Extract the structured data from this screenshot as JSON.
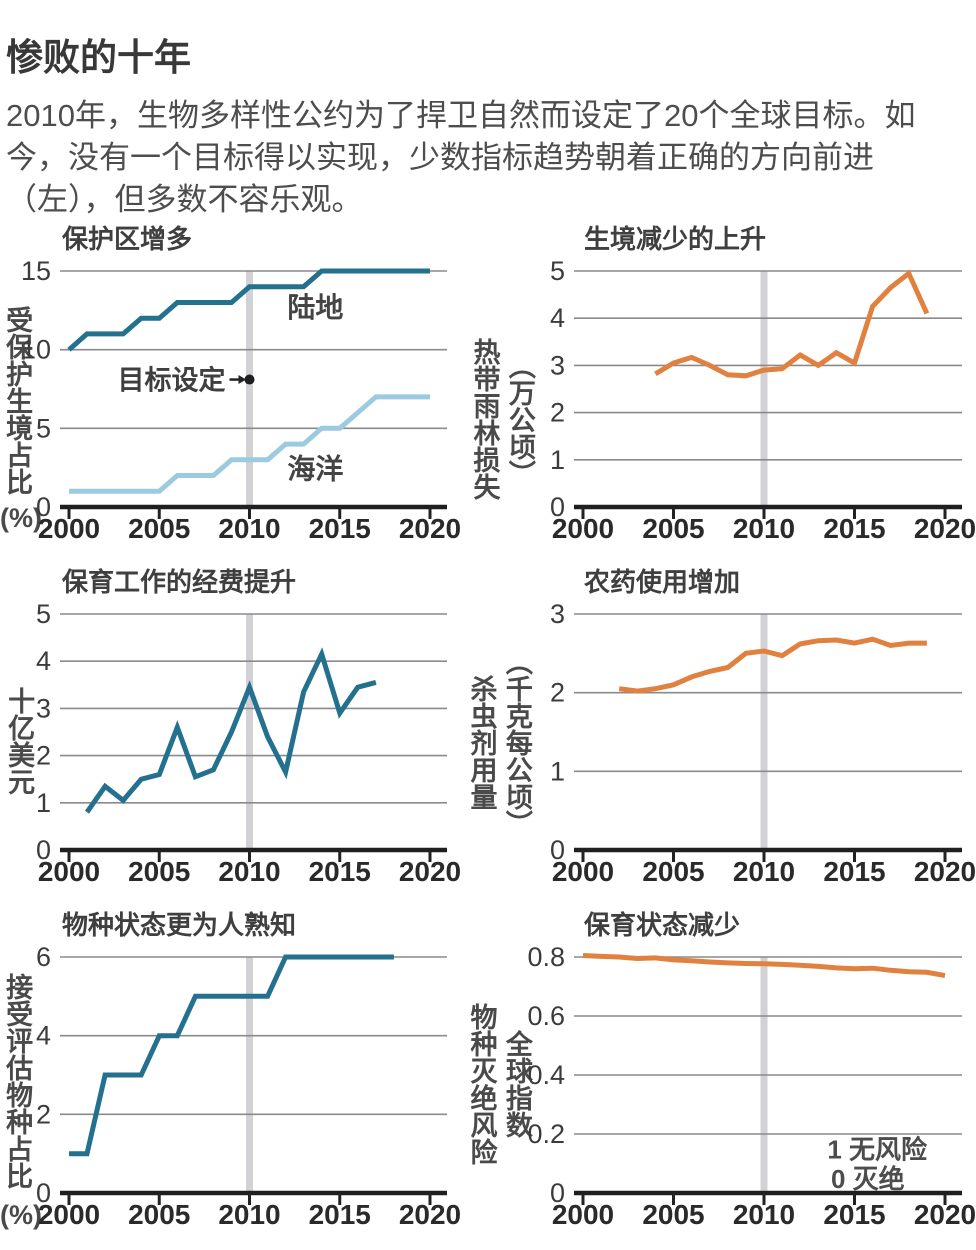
{
  "page": {
    "title": "惨败的十年",
    "intro": "2010年，生物多样性公约为了捍卫自然而设定了20个全球目标。如今，没有一个目标得以实现，少数指标趋势朝着正确的方向前进（左），但多数不容乐观。"
  },
  "colors": {
    "teal": "#24708F",
    "light_blue": "#9CCBE0",
    "orange": "#E0813F",
    "band": "#D2D2D6",
    "grid": "#8A8A8A",
    "axis": "#1F1F1F",
    "tick_label": "#3C3C3C",
    "year_label": "#2A2A2A",
    "annotation": "#4D4D4D"
  },
  "chart_data": [
    {
      "id": "protected-areas",
      "type": "line",
      "title": "保护区增多",
      "ylabel_lines": [
        "受保护生境占比"
      ],
      "ylabel_unit": "(%)",
      "ymax": 15,
      "yticks": [
        "0",
        "5",
        "10",
        "15"
      ],
      "xticks": [
        2000,
        2005,
        2010,
        2015,
        2020
      ],
      "xlim": [
        2000,
        2020
      ],
      "band_year": 2010,
      "grid": true,
      "series": [
        {
          "key": "land",
          "name": "陆地",
          "color_key": "teal",
          "label_pos": {
            "year": 2012.1,
            "value": 12.7
          },
          "x": [
            2000,
            2001,
            2002,
            2003,
            2004,
            2005,
            2006,
            2007,
            2008,
            2009,
            2010,
            2011,
            2012,
            2013,
            2014,
            2015,
            2016,
            2017,
            2018,
            2019,
            2020
          ],
          "y": [
            10,
            11,
            11,
            11,
            12,
            12,
            13,
            13,
            13,
            13,
            14,
            14,
            14,
            14,
            15,
            15,
            15,
            15,
            15,
            15,
            15
          ]
        },
        {
          "key": "ocean",
          "name": "海洋",
          "color_key": "light_blue",
          "label_pos": {
            "year": 2012.1,
            "value": 2.45
          },
          "x": [
            2000,
            2001,
            2002,
            2003,
            2004,
            2005,
            2006,
            2007,
            2008,
            2009,
            2010,
            2011,
            2012,
            2013,
            2014,
            2015,
            2016,
            2017,
            2018,
            2019,
            2020
          ],
          "y": [
            1,
            1,
            1,
            1,
            1,
            1,
            2,
            2,
            2,
            3,
            3,
            3,
            4,
            4,
            5,
            5,
            6,
            7,
            7,
            7,
            7
          ]
        }
      ],
      "annotations": [
        {
          "type": "target-dot",
          "text": "目标设定",
          "year": 2010,
          "value": 8.1
        }
      ]
    },
    {
      "id": "habitat-loss",
      "type": "line",
      "title": "生境减少的上升",
      "ylabel_lines": [
        "热带雨林损失",
        "（万公顷）"
      ],
      "ylabel_unit": "",
      "ymax": 5,
      "yticks": [
        "0",
        "1",
        "2",
        "3",
        "4",
        "5"
      ],
      "xticks": [
        2000,
        2005,
        2010,
        2015,
        2020
      ],
      "xlim": [
        2000,
        2020
      ],
      "band_year": 2010,
      "grid": true,
      "series": [
        {
          "key": "forest-loss",
          "name": "热带雨林损失",
          "color_key": "orange",
          "x": [
            2004,
            2005,
            2006,
            2007,
            2008,
            2009,
            2010,
            2011,
            2012,
            2013,
            2014,
            2015,
            2016,
            2017,
            2018,
            2019
          ],
          "y": [
            2.82,
            3.05,
            3.17,
            3.0,
            2.8,
            2.78,
            2.9,
            2.93,
            3.22,
            3.0,
            3.27,
            3.05,
            4.25,
            4.65,
            4.95,
            4.1
          ]
        }
      ],
      "annotations": []
    },
    {
      "id": "conservation-funding",
      "type": "line",
      "title": "保育工作的经费提升",
      "ylabel_lines": [
        "十亿美元"
      ],
      "ylabel_unit": "",
      "ymax": 5,
      "yticks": [
        "0",
        "1",
        "2",
        "3",
        "4",
        "5"
      ],
      "xticks": [
        2000,
        2005,
        2010,
        2015,
        2020
      ],
      "xlim": [
        2000,
        2020
      ],
      "band_year": 2010,
      "grid": true,
      "series": [
        {
          "key": "funding",
          "name": "十亿美元",
          "color_key": "teal",
          "x": [
            2001,
            2002,
            2003,
            2004,
            2005,
            2006,
            2007,
            2008,
            2009,
            2010,
            2011,
            2012,
            2013,
            2014,
            2015,
            2016,
            2017
          ],
          "y": [
            0.8,
            1.35,
            1.05,
            1.5,
            1.6,
            2.6,
            1.55,
            1.7,
            2.5,
            3.45,
            2.4,
            1.65,
            3.35,
            4.15,
            2.9,
            3.45,
            3.55
          ]
        }
      ],
      "annotations": []
    },
    {
      "id": "pesticide-use",
      "type": "line",
      "title": "农药使用增加",
      "ylabel_lines": [
        "杀虫剂用量",
        "（千克每公顷）"
      ],
      "ylabel_unit": "",
      "ymax": 3,
      "yticks": [
        "0",
        "1",
        "2",
        "3"
      ],
      "xticks": [
        2000,
        2005,
        2010,
        2015,
        2020
      ],
      "xlim": [
        2000,
        2020
      ],
      "band_year": 2010,
      "grid": true,
      "series": [
        {
          "key": "pesticide",
          "name": "杀虫剂用量",
          "color_key": "orange",
          "x": [
            2002,
            2003,
            2004,
            2005,
            2006,
            2007,
            2008,
            2009,
            2010,
            2011,
            2012,
            2013,
            2014,
            2015,
            2016,
            2017,
            2018,
            2019
          ],
          "y": [
            2.05,
            2.02,
            2.05,
            2.1,
            2.2,
            2.27,
            2.32,
            2.5,
            2.53,
            2.47,
            2.62,
            2.66,
            2.67,
            2.63,
            2.68,
            2.6,
            2.63,
            2.63
          ]
        }
      ],
      "annotations": []
    },
    {
      "id": "species-assessed",
      "type": "line",
      "title": "物种状态更为人熟知",
      "ylabel_lines": [
        "接受评估物种占比"
      ],
      "ylabel_unit": "(%)",
      "ymax": 6,
      "yticks": [
        "0",
        "2",
        "4",
        "6"
      ],
      "xticks": [
        2000,
        2005,
        2010,
        2015,
        2020
      ],
      "xlim": [
        2000,
        2020
      ],
      "band_year": 2010,
      "grid": true,
      "series": [
        {
          "key": "assessed",
          "name": "接受评估物种占比",
          "color_key": "teal",
          "x": [
            2000,
            2001,
            2002,
            2003,
            2004,
            2005,
            2006,
            2007,
            2008,
            2009,
            2010,
            2011,
            2012,
            2013,
            2014,
            2015,
            2016,
            2017,
            2018
          ],
          "y": [
            1,
            1,
            3,
            3,
            3,
            4,
            4,
            5,
            5,
            5,
            5,
            5,
            6,
            6,
            6,
            6,
            6,
            6,
            6
          ]
        }
      ],
      "annotations": []
    },
    {
      "id": "red-list-index",
      "type": "line",
      "title": "保育状态减少",
      "ylabel_lines": [
        "物种灭绝风险",
        "全球指数"
      ],
      "ylabel_unit": "",
      "ymax": 0.8,
      "yticks": [
        "0",
        "0.2",
        "0.4",
        "0.6",
        "0.8"
      ],
      "xticks": [
        2000,
        2005,
        2010,
        2015,
        2020
      ],
      "xlim": [
        2000,
        2020
      ],
      "band_year": 2010,
      "grid": true,
      "series": [
        {
          "key": "red-list",
          "name": "全球指数",
          "color_key": "orange",
          "x": [
            2000,
            2001,
            2002,
            2003,
            2004,
            2005,
            2006,
            2007,
            2008,
            2009,
            2010,
            2011,
            2012,
            2013,
            2014,
            2015,
            2016,
            2017,
            2018,
            2019,
            2020
          ],
          "y": [
            0.805,
            0.802,
            0.8,
            0.795,
            0.797,
            0.79,
            0.787,
            0.783,
            0.78,
            0.778,
            0.777,
            0.775,
            0.772,
            0.768,
            0.763,
            0.76,
            0.762,
            0.755,
            0.75,
            0.748,
            0.737
          ]
        }
      ],
      "annotations": [
        {
          "type": "text",
          "text": "1 无风险",
          "year": 2013.5,
          "value": 0.148
        },
        {
          "type": "text",
          "text": "0 灭绝",
          "year": 2013.7,
          "value": 0.047
        }
      ]
    }
  ]
}
